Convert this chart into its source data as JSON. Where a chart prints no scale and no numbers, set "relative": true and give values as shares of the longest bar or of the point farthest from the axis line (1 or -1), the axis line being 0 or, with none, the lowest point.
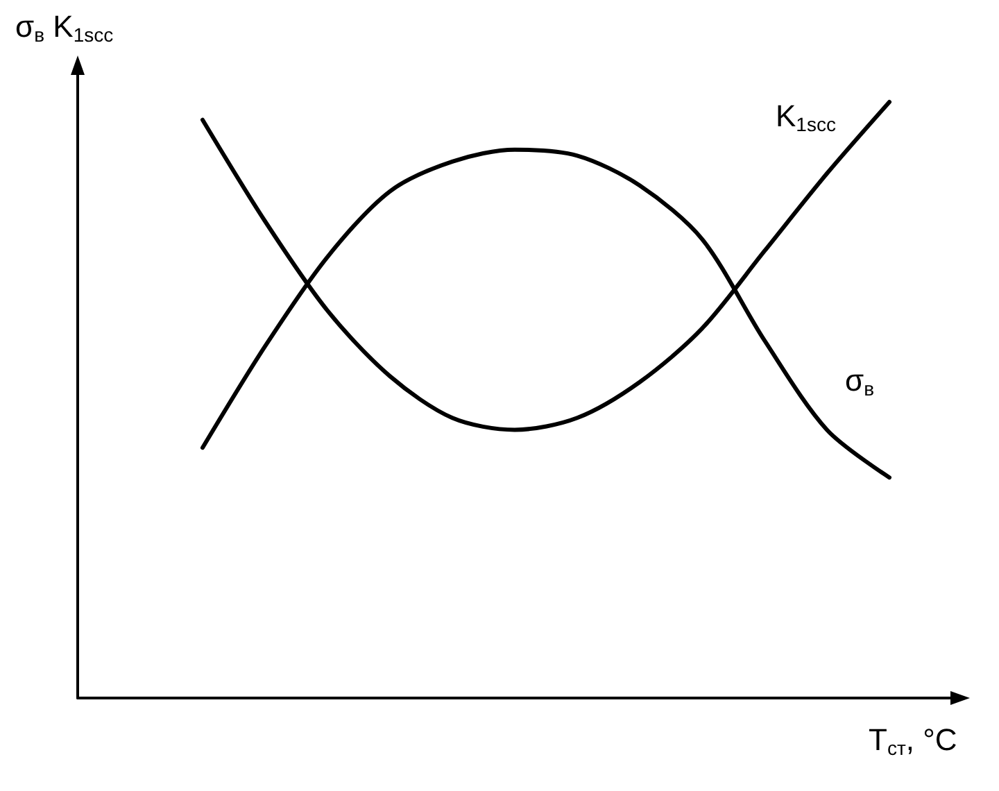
{
  "chart_data": {
    "type": "line",
    "relative": true,
    "xlabel": "T$_{ст}$, °C",
    "ylabel": "σ$_{в}$ K$_{1scc}$",
    "categories": [
      null,
      null,
      null,
      null,
      null,
      null,
      null,
      null,
      null,
      null,
      null,
      null,
      null,
      null,
      null
    ],
    "series": [
      {
        "name": "K$_{1scc}$",
        "color": "#000000",
        "values": [
          null,
          null,
          0.97,
          0.8,
          0.65,
          0.54,
          0.47,
          0.45,
          0.47,
          0.53,
          0.62,
          0.75,
          0.88,
          1.0,
          null
        ]
      },
      {
        "name": "σ$_{в}$",
        "color": "#000000",
        "values": [
          null,
          null,
          0.42,
          0.59,
          0.74,
          0.85,
          0.9,
          0.92,
          0.91,
          0.86,
          0.77,
          0.6,
          0.45,
          0.37,
          null
        ]
      }
    ],
    "grid": false,
    "legend": false,
    "marker": "none",
    "line_style": "solid"
  }
}
